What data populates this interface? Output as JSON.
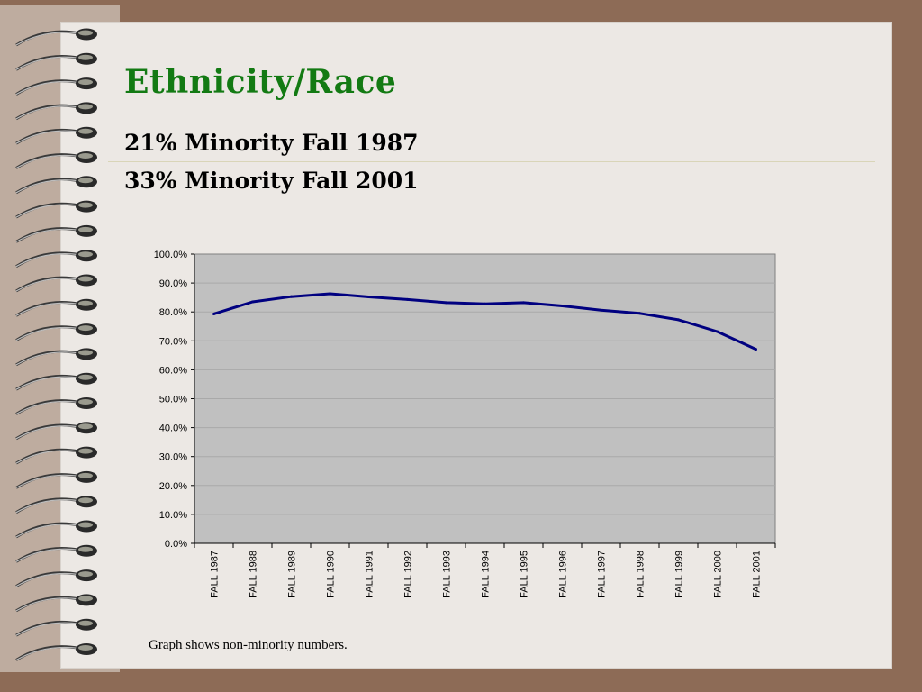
{
  "slide": {
    "title": "Ethnicity/Race",
    "subtitle_lines": [
      "21% Minority  Fall 1987",
      "33% Minority Fall 2001"
    ],
    "caption": "Graph shows non-minority numbers."
  },
  "colors": {
    "background": "#8d6b56",
    "page": "#ece8e4",
    "title": "#137a13",
    "plot_area": "#c0c0c0",
    "series_line": "#000080"
  },
  "chart_data": {
    "type": "line",
    "title": "",
    "xlabel": "",
    "ylabel": "",
    "categories": [
      "FALL 1987",
      "FALL 1988",
      "FALL 1989",
      "FALL 1990",
      "FALL 1991",
      "FALL 1992",
      "FALL 1993",
      "FALL 1994",
      "FALL 1995",
      "FALL 1996",
      "FALL 1997",
      "FALL 1998",
      "FALL 1999",
      "FALL 2000",
      "FALL 2001"
    ],
    "series": [
      {
        "values": [
          79.3,
          83.5,
          85.3,
          86.3,
          85.2,
          84.3,
          83.2,
          82.8,
          83.2,
          82.1,
          80.6,
          79.5,
          77.3,
          73.2,
          67.1
        ]
      }
    ],
    "ylim": [
      0,
      100
    ],
    "yticks": [
      "0.0%",
      "10.0%",
      "20.0%",
      "30.0%",
      "40.0%",
      "50.0%",
      "60.0%",
      "70.0%",
      "80.0%",
      "90.0%",
      "100.0%"
    ],
    "grid": true,
    "legend": "none"
  }
}
